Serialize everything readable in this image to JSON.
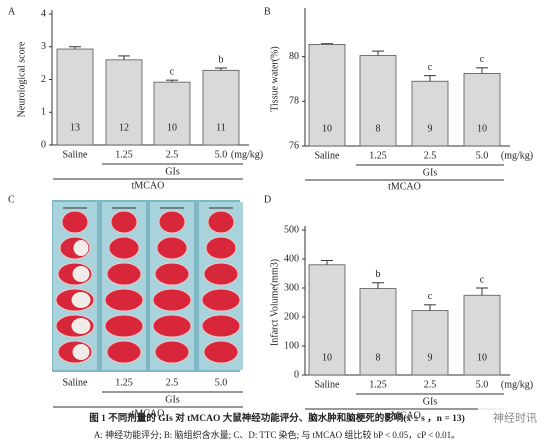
{
  "chart_data": [
    {
      "type": "bar",
      "panel": "A",
      "ylabel": "Neurological score",
      "categories": [
        "Saline",
        "1.25",
        "2.5",
        "5.0"
      ],
      "unit": "(mg/kg)",
      "group_label": "GIs",
      "xlabel": "tMCAO",
      "values": [
        2.93,
        2.6,
        1.92,
        2.28
      ],
      "errors": [
        0.07,
        0.12,
        0.06,
        0.07
      ],
      "n_labels": [
        "13",
        "12",
        "10",
        "11"
      ],
      "sig": [
        null,
        null,
        "c",
        "b"
      ],
      "ylim": [
        0,
        4
      ],
      "yticks": [
        0,
        1,
        2,
        3,
        4
      ],
      "color": "#d9d9d9"
    },
    {
      "type": "bar",
      "panel": "B",
      "ylabel": "Tissue water(%)",
      "categories": [
        "Saline",
        "1.25",
        "2.5",
        "5.0"
      ],
      "unit": "(mg/kg)",
      "group_label": "GIs",
      "xlabel": "tMCAO",
      "values": [
        80.55,
        80.05,
        78.9,
        79.25
      ],
      "errors": [
        0.03,
        0.2,
        0.25,
        0.25
      ],
      "n_labels": [
        "10",
        "8",
        "9",
        "10"
      ],
      "sig": [
        null,
        null,
        "c",
        "c"
      ],
      "ylim": [
        76,
        82
      ],
      "yticks": [
        76,
        78,
        80
      ],
      "color": "#d9d9d9"
    },
    {
      "type": "image",
      "panel": "C",
      "categories": [
        "Saline",
        "1.25",
        "2.5",
        "5.0"
      ],
      "group_label": "GIs",
      "xlabel": "tMCAO"
    },
    {
      "type": "bar",
      "panel": "D",
      "ylabel": "Infarct Volume(mm3)",
      "categories": [
        "Saline",
        "1.25",
        "2.5",
        "5.0"
      ],
      "unit": "(mg/kg)",
      "group_label": "GIs",
      "xlabel": "tMCAO",
      "values": [
        380,
        298,
        222,
        275
      ],
      "errors": [
        15,
        20,
        20,
        25
      ],
      "n_labels": [
        "10",
        "8",
        "9",
        "10"
      ],
      "sig": [
        null,
        "b",
        "c",
        "c"
      ],
      "ylim": [
        0,
        500
      ],
      "yticks": [
        0,
        100,
        200,
        300,
        400,
        500
      ],
      "color": "#d9d9d9"
    }
  ],
  "caption": {
    "title": "图 1   不同剂量的 GIs 对 tMCAO 大鼠神经功能评分、脑水肿和脑梗死的影响(x̄ ± s ，n = 13)",
    "note": "A: 神经功能评分; B: 脑组织含水量; C、D: TTC 染色; 与 tMCAO 组比较 bP < 0.05，cP < 0.01。"
  },
  "watermark": "神经时讯"
}
